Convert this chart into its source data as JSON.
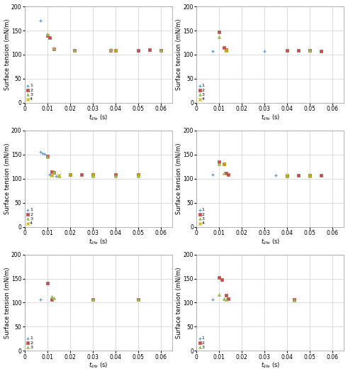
{
  "subplot_data": [
    {
      "series": [
        {
          "label": "1",
          "color": "#5b9bd5",
          "marker": "+",
          "x": [
            0.007,
            0.038,
            0.05,
            0.055,
            0.06
          ],
          "y": [
            170,
            110,
            108,
            109,
            108
          ]
        },
        {
          "label": "2",
          "color": "#c0504d",
          "marker": "s",
          "x": [
            0.01,
            0.011,
            0.013,
            0.022,
            0.038,
            0.04,
            0.05,
            0.055,
            0.06
          ],
          "y": [
            140,
            135,
            112,
            109,
            109,
            109,
            109,
            110,
            109
          ]
        },
        {
          "label": "3",
          "color": "#9bbb59",
          "marker": "^",
          "x": [
            0.01,
            0.013,
            0.022,
            0.038,
            0.06
          ],
          "y": [
            143,
            113,
            109,
            110,
            109
          ]
        },
        {
          "label": "4",
          "color": "#c8b400",
          "marker": "x",
          "x": [
            0.04
          ],
          "y": [
            109
          ]
        }
      ]
    },
    {
      "series": [
        {
          "label": "1",
          "color": "#5b9bd5",
          "marker": "+",
          "x": [
            0.007,
            0.03,
            0.05,
            0.055
          ],
          "y": [
            107,
            108,
            108,
            108
          ]
        },
        {
          "label": "2",
          "color": "#c0504d",
          "marker": "s",
          "x": [
            0.01,
            0.012,
            0.013,
            0.04,
            0.045,
            0.05,
            0.055
          ],
          "y": [
            147,
            115,
            111,
            109,
            109,
            109,
            108
          ]
        },
        {
          "label": "3",
          "color": "#9bbb59",
          "marker": "^",
          "x": [
            0.01,
            0.013,
            0.05
          ],
          "y": [
            137,
            109,
            109
          ]
        },
        {
          "label": "4",
          "color": "#c8b400",
          "marker": "x",
          "x": [
            0.013
          ],
          "y": [
            109
          ]
        }
      ]
    },
    {
      "series": [
        {
          "label": "1",
          "color": "#5b9bd5",
          "marker": "+",
          "x": [
            0.007,
            0.008,
            0.009,
            0.011,
            0.012,
            0.014,
            0.03,
            0.05
          ],
          "y": [
            155,
            152,
            151,
            108,
            107,
            106,
            108,
            108
          ]
        },
        {
          "label": "2",
          "color": "#c0504d",
          "marker": "s",
          "x": [
            0.01,
            0.012,
            0.013,
            0.02,
            0.025,
            0.03,
            0.04,
            0.05
          ],
          "y": [
            147,
            115,
            113,
            108,
            109,
            109,
            108,
            108
          ]
        },
        {
          "label": "3",
          "color": "#9bbb59",
          "marker": "^",
          "x": [
            0.01,
            0.013,
            0.015,
            0.03,
            0.04,
            0.05
          ],
          "y": [
            145,
            115,
            106,
            106,
            106,
            106
          ]
        },
        {
          "label": "4",
          "color": "#c8b400",
          "marker": "x",
          "x": [
            0.012,
            0.015,
            0.02,
            0.03,
            0.05
          ],
          "y": [
            107,
            107,
            109,
            108,
            108
          ]
        }
      ]
    },
    {
      "series": [
        {
          "label": "1",
          "color": "#5b9bd5",
          "marker": "+",
          "x": [
            0.007,
            0.035,
            0.04,
            0.045,
            0.05,
            0.055
          ],
          "y": [
            108,
            107,
            107,
            107,
            107,
            107
          ]
        },
        {
          "label": "2",
          "color": "#c0504d",
          "marker": "s",
          "x": [
            0.01,
            0.012,
            0.013,
            0.014,
            0.04,
            0.045,
            0.05,
            0.055
          ],
          "y": [
            135,
            130,
            112,
            109,
            106,
            107,
            107,
            107
          ]
        },
        {
          "label": "3",
          "color": "#9bbb59",
          "marker": "^",
          "x": [
            0.01,
            0.012,
            0.04,
            0.05
          ],
          "y": [
            130,
            112,
            105,
            105
          ]
        },
        {
          "label": "4",
          "color": "#c8b400",
          "marker": "x",
          "x": [
            0.012,
            0.04,
            0.05
          ],
          "y": [
            130,
            107,
            107
          ]
        }
      ]
    },
    {
      "series": [
        {
          "label": "1",
          "color": "#5b9bd5",
          "marker": "+",
          "x": [
            0.007
          ],
          "y": [
            107
          ]
        },
        {
          "label": "2",
          "color": "#c0504d",
          "marker": "s",
          "x": [
            0.01,
            0.012,
            0.03,
            0.05
          ],
          "y": [
            141,
            107,
            107,
            107
          ]
        },
        {
          "label": "3",
          "color": "#9bbb59",
          "marker": "^",
          "x": [
            0.012,
            0.013,
            0.03,
            0.05
          ],
          "y": [
            113,
            109,
            106,
            106
          ]
        }
      ]
    },
    {
      "series": [
        {
          "label": "1",
          "color": "#5b9bd5",
          "marker": "+",
          "x": [
            0.007
          ],
          "y": [
            107
          ]
        },
        {
          "label": "2",
          "color": "#c0504d",
          "marker": "s",
          "x": [
            0.01,
            0.011,
            0.013,
            0.014,
            0.043
          ],
          "y": [
            152,
            148,
            115,
            108,
            107
          ]
        },
        {
          "label": "3",
          "color": "#9bbb59",
          "marker": "^",
          "x": [
            0.01,
            0.012,
            0.013,
            0.043
          ],
          "y": [
            117,
            108,
            106,
            105
          ]
        }
      ]
    }
  ],
  "xlim": [
    0,
    0.065
  ],
  "ylim": [
    0,
    200
  ],
  "xticks": [
    0,
    0.01,
    0.02,
    0.03,
    0.04,
    0.05,
    0.06
  ],
  "xtick_labels": [
    "0",
    "0.01",
    "0.02",
    "0.03",
    "0.04",
    "0.05",
    "0.06"
  ],
  "yticks": [
    0,
    50,
    100,
    150,
    200
  ],
  "xlabel": "t",
  "xlabel_sub": "life",
  "xlabel_unit": " (s)",
  "ylabel": "Surface tension (mN/m)",
  "grid_color": "#d0d0d0",
  "fig_bg": "#ffffff",
  "plot_bg": "#ffffff",
  "legend_fontsize": 4.5,
  "tick_fontsize": 5.5,
  "label_fontsize": 6,
  "marker_size_sq": 9,
  "marker_size_plus": 12,
  "spine_color": "#999999"
}
